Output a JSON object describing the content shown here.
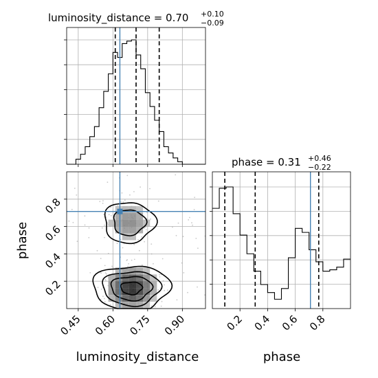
{
  "chart_data": {
    "type": "corner",
    "parameters": [
      "luminosity_distance",
      "phase"
    ],
    "titles": {
      "luminosity_distance": {
        "prefix": "luminosity_distance = ",
        "median": "0.70",
        "plus": "+0.10",
        "minus": "−0.09"
      },
      "phase": {
        "prefix": "phase = ",
        "median": "0.31",
        "plus": "+0.46",
        "minus": "−0.22"
      }
    },
    "axis_labels": {
      "x_left": "luminosity_distance",
      "x_right": "phase",
      "y": "phase"
    },
    "ranges": {
      "luminosity_distance": [
        0.4,
        1.0
      ],
      "phase": [
        0.0,
        1.0
      ]
    },
    "ticks": {
      "luminosity_distance": [
        "0.45",
        "0.60",
        "0.75",
        "0.90"
      ],
      "phase": [
        "0.2",
        "0.4",
        "0.6",
        "0.8"
      ]
    },
    "truth": {
      "luminosity_distance": 0.63,
      "phase": 0.71
    },
    "quantiles": {
      "luminosity_distance": [
        0.61,
        0.7,
        0.8
      ],
      "phase": [
        0.09,
        0.31,
        0.77
      ]
    },
    "hist_luminosity_distance": {
      "bin_start": 0.4,
      "bin_width": 0.02,
      "values": [
        0.0,
        0.0,
        0.04,
        0.08,
        0.14,
        0.22,
        0.3,
        0.45,
        0.58,
        0.72,
        0.89,
        0.85,
        0.96,
        0.98,
        0.99,
        0.87,
        0.76,
        0.57,
        0.46,
        0.35,
        0.26,
        0.14,
        0.09,
        0.05,
        0.02,
        0.0,
        0.0,
        0.0,
        0.0,
        0.0
      ]
    },
    "hist_phase": {
      "bin_start": 0.0,
      "bin_width": 0.05,
      "values": [
        0.75,
        0.9,
        0.91,
        0.71,
        0.55,
        0.41,
        0.28,
        0.18,
        0.12,
        0.07,
        0.15,
        0.38,
        0.6,
        0.57,
        0.44,
        0.35,
        0.28,
        0.29,
        0.31,
        0.37
      ]
    },
    "density_2d": {
      "blobs": [
        {
          "luminosity_distance": 0.68,
          "phase": 0.15,
          "weight": 1.0
        },
        {
          "luminosity_distance": 0.67,
          "phase": 0.63,
          "weight": 0.55
        }
      ]
    },
    "grid": true
  }
}
